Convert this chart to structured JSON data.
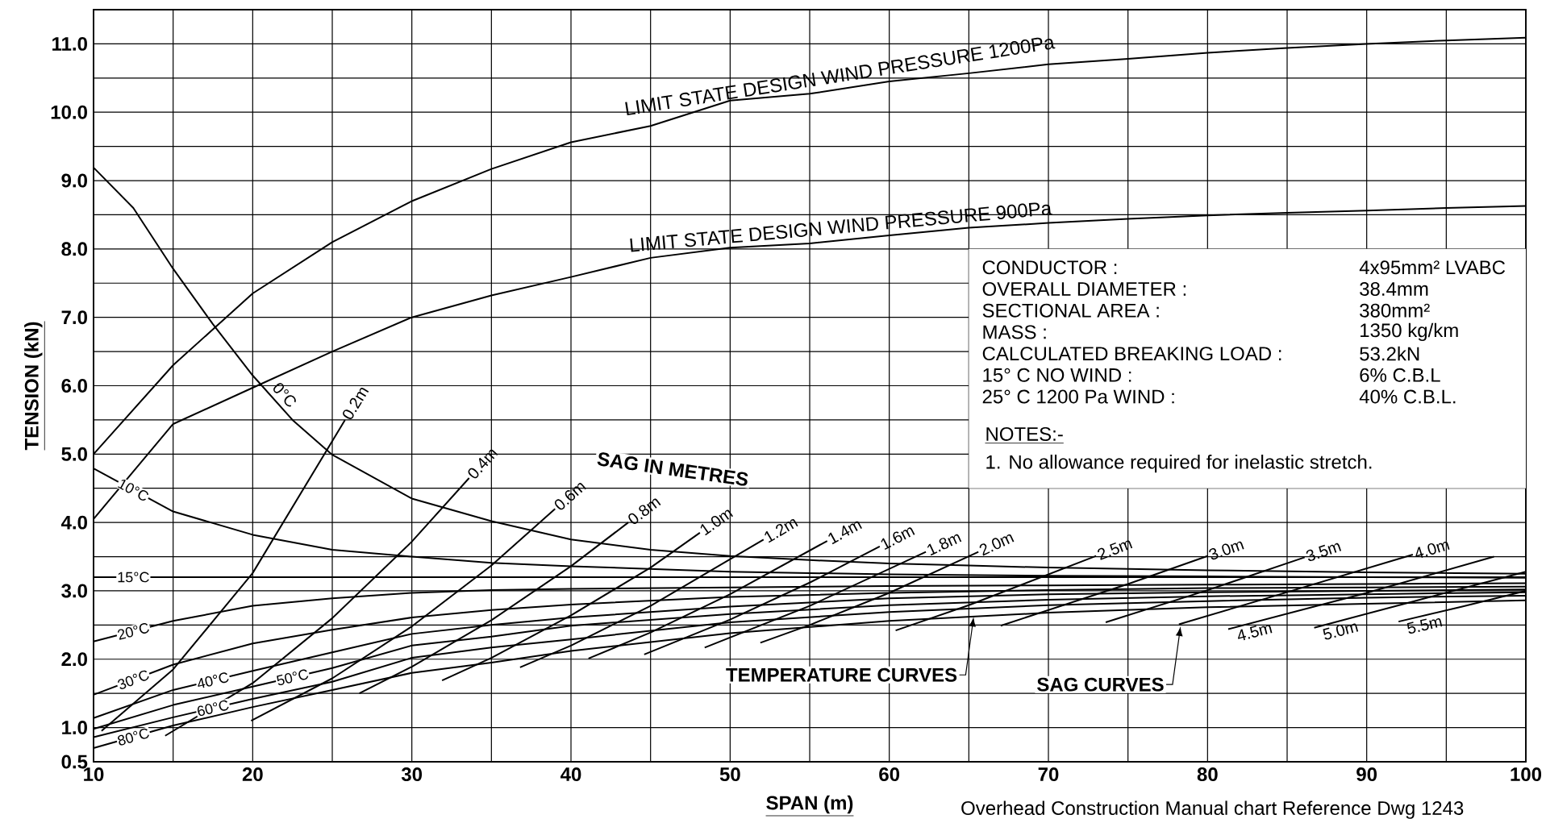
{
  "chart_data": {
    "type": "line",
    "xlabel": "SPAN (m)",
    "ylabel": "TENSION (kN)",
    "xlim": [
      10,
      100
    ],
    "ylim": [
      0.5,
      11.5
    ],
    "xticks": [
      10,
      {
        "value": 15,
        "label": null
      },
      20,
      {
        "value": 25,
        "label": null
      },
      30,
      {
        "value": 35,
        "label": null
      },
      40,
      {
        "value": 45,
        "label": null
      },
      50,
      {
        "value": 55,
        "label": null
      },
      60,
      {
        "value": 65,
        "label": null
      },
      70,
      {
        "value": 75,
        "label": null
      },
      80,
      {
        "value": 85,
        "label": null
      },
      90,
      {
        "value": 95,
        "label": null
      },
      100
    ],
    "yticks": [
      0.5,
      {
        "value": 1,
        "label": "1.0"
      },
      {
        "value": 1.5,
        "label": null
      },
      {
        "value": 2,
        "label": "2.0"
      },
      {
        "value": 2.5,
        "label": null
      },
      {
        "value": 3,
        "label": "3.0"
      },
      {
        "value": 3.5,
        "label": null
      },
      {
        "value": 4,
        "label": "4.0"
      },
      {
        "value": 4.5,
        "label": null
      },
      {
        "value": 5,
        "label": "5.0"
      },
      {
        "value": 5.5,
        "label": null
      },
      {
        "value": 6,
        "label": "6.0"
      },
      {
        "value": 6.5,
        "label": null
      },
      {
        "value": 7,
        "label": "7.0"
      },
      {
        "value": 7.5,
        "label": null
      },
      {
        "value": 8,
        "label": "8.0"
      },
      {
        "value": 8.5,
        "label": null
      },
      {
        "value": 9,
        "label": "9.0"
      },
      {
        "value": 9.5,
        "label": null
      },
      {
        "value": 10,
        "label": "10.0"
      },
      {
        "value": 10.5,
        "label": null
      },
      {
        "value": 11,
        "label": "11.0"
      }
    ],
    "grid": true,
    "annotations": [
      "SAG IN METRES",
      {
        "text": "TEMPERATURE CURVES",
        "x": 65.3,
        "y": 2.62
      },
      {
        "text": "SAG CURVES",
        "x": 78.3,
        "y": 2.48
      },
      "CONDUCTOR :",
      "4x95mm² LVABC",
      "OVERALL DIAMETER :",
      "38.4mm",
      "SECTIONAL AREA :",
      "380mm²",
      "MASS :",
      "1350 kg/km",
      "CALCULATED BREAKING LOAD :",
      "53.2kN",
      "15° C NO WIND :",
      "6% C.B.L",
      "25° C 1200 Pa WIND :",
      "40% C.B.L.",
      "NOTES:-",
      "1.  No allowance required for inelastic stretch.",
      "Overhead Construction Manual chart Reference Dwg 1243"
    ],
    "series": [
      {
        "name": "LIMIT STATE DESIGN  WIND PRESSURE 1200Pa",
        "color": "#000000",
        "x": [
          10,
          15,
          20,
          25,
          30,
          35,
          40,
          45,
          50,
          55,
          60,
          65,
          70,
          75,
          80,
          85,
          90,
          95,
          100
        ],
        "values": [
          5.0,
          6.3,
          7.35,
          8.1,
          8.7,
          9.17,
          9.56,
          9.8,
          10.17,
          10.27,
          10.45,
          10.57,
          10.7,
          10.78,
          10.87,
          10.94,
          11.0,
          11.05,
          11.09
        ]
      },
      {
        "name": "LIMIT STATE DESIGN  WIND PRESSURE 900Pa",
        "color": "#000000",
        "x": [
          10,
          15,
          20,
          25,
          30,
          35,
          40,
          45,
          50,
          55,
          60,
          65,
          70,
          75,
          80,
          85,
          90,
          95,
          100
        ],
        "values": [
          4.05,
          5.44,
          5.97,
          6.5,
          7.0,
          7.32,
          7.59,
          7.87,
          8.02,
          8.08,
          8.2,
          8.31,
          8.38,
          8.44,
          8.49,
          8.53,
          8.56,
          8.6,
          8.63
        ]
      },
      {
        "name": "0°C",
        "color": "#000000",
        "x": [
          10,
          12.5,
          15,
          17.5,
          20,
          22.5,
          25,
          30,
          35,
          40,
          45,
          50,
          55,
          60,
          65,
          70,
          80,
          90,
          100
        ],
        "values": [
          9.19,
          8.6,
          7.71,
          6.9,
          6.15,
          5.5,
          4.99,
          4.35,
          4.02,
          3.75,
          3.6,
          3.51,
          3.45,
          3.4,
          3.37,
          3.34,
          3.3,
          3.27,
          3.25
        ]
      },
      {
        "name": "10°C",
        "color": "#000000",
        "x": [
          10,
          15,
          20,
          25,
          30,
          35,
          40,
          50,
          60,
          70,
          80,
          90,
          100
        ],
        "values": [
          4.79,
          4.16,
          3.82,
          3.6,
          3.5,
          3.41,
          3.36,
          3.28,
          3.24,
          3.22,
          3.21,
          3.2,
          3.19
        ]
      },
      {
        "name": "15°C",
        "color": "#000000",
        "x": [
          10,
          100
        ],
        "values": [
          3.2,
          3.2
        ]
      },
      {
        "name": "20°C",
        "color": "#000000",
        "x": [
          10,
          15,
          20,
          25,
          30,
          35,
          40,
          50,
          60,
          70,
          80,
          90,
          100
        ],
        "values": [
          2.26,
          2.56,
          2.78,
          2.89,
          2.97,
          3.01,
          3.03,
          3.05,
          3.07,
          3.08,
          3.09,
          3.1,
          3.11
        ]
      },
      {
        "name": "30°C",
        "color": "#000000",
        "x": [
          10,
          15,
          20,
          25,
          30,
          35,
          40,
          50,
          60,
          70,
          80,
          90,
          100
        ],
        "values": [
          1.48,
          1.92,
          2.23,
          2.43,
          2.61,
          2.72,
          2.8,
          2.91,
          2.97,
          3.01,
          3.04,
          3.05,
          3.06
        ]
      },
      {
        "name": "40°C",
        "color": "#000000",
        "x": [
          10,
          15,
          20,
          25,
          30,
          35,
          40,
          50,
          60,
          70,
          80,
          90,
          100
        ],
        "values": [
          1.14,
          1.55,
          1.83,
          2.1,
          2.37,
          2.5,
          2.61,
          2.77,
          2.89,
          2.95,
          2.98,
          3.0,
          3.02
        ]
      },
      {
        "name": "50°C",
        "color": "#000000",
        "x": [
          10,
          15,
          20,
          25,
          30,
          35,
          40,
          50,
          60,
          70,
          80,
          90,
          100
        ],
        "values": [
          0.98,
          1.33,
          1.6,
          1.87,
          2.2,
          2.33,
          2.49,
          2.66,
          2.79,
          2.87,
          2.92,
          2.95,
          2.98
        ]
      },
      {
        "name": "60°C",
        "color": "#000000",
        "x": [
          10,
          15,
          20,
          25,
          30,
          35,
          40,
          50,
          60,
          70,
          80,
          90,
          100
        ],
        "values": [
          0.86,
          1.15,
          1.42,
          1.67,
          2.02,
          2.17,
          2.29,
          2.54,
          2.69,
          2.79,
          2.85,
          2.9,
          2.93
        ]
      },
      {
        "name": "80°C",
        "color": "#000000",
        "x": [
          10,
          15,
          20,
          25,
          30,
          35,
          40,
          50,
          60,
          70,
          80,
          90,
          100
        ],
        "values": [
          0.7,
          1.03,
          1.3,
          1.55,
          1.8,
          1.95,
          2.12,
          2.38,
          2.56,
          2.68,
          2.76,
          2.81,
          2.86
        ]
      },
      {
        "name": "0.2m",
        "color": "#000000",
        "x": [
          10.5,
          15,
          20,
          25.8
        ],
        "values": [
          0.95,
          1.85,
          3.26,
          5.5
        ]
      },
      {
        "name": "0.4m",
        "color": "#000000",
        "x": [
          14.5,
          20,
          25,
          30,
          33.6
        ],
        "values": [
          0.88,
          1.65,
          2.6,
          3.72,
          4.65
        ]
      },
      {
        "name": "0.6m",
        "color": "#000000",
        "x": [
          19.9,
          25,
          30,
          35,
          39
        ],
        "values": [
          1.1,
          1.72,
          2.48,
          3.37,
          4.2
        ]
      },
      {
        "name": "0.8m",
        "color": "#000000",
        "x": [
          26.7,
          30,
          35,
          40,
          43.6
        ],
        "values": [
          1.5,
          1.89,
          2.57,
          3.36,
          4.0
        ]
      },
      {
        "name": "1.0m",
        "color": "#000000",
        "x": [
          31.9,
          35,
          40,
          45,
          48.1
        ],
        "values": [
          1.69,
          2.02,
          2.64,
          3.34,
          3.85
        ]
      },
      {
        "name": "1.2m",
        "color": "#000000",
        "x": [
          36.8,
          40,
          45,
          52.1
        ],
        "values": [
          1.88,
          2.2,
          2.78,
          3.75
        ]
      },
      {
        "name": "1.4m",
        "color": "#000000",
        "x": [
          41.1,
          45,
          50,
          56.1
        ],
        "values": [
          2.01,
          2.39,
          2.95,
          3.73
        ]
      },
      {
        "name": "1.6m",
        "color": "#000000",
        "x": [
          44.6,
          50,
          55,
          59.4
        ],
        "values": [
          2.07,
          2.58,
          3.12,
          3.65
        ]
      },
      {
        "name": "1.8m",
        "color": "#000000",
        "x": [
          48.4,
          55,
          62.3
        ],
        "values": [
          2.17,
          2.78,
          3.57
        ]
      },
      {
        "name": "2.0m",
        "color": "#000000",
        "x": [
          51.9,
          55,
          60,
          65.6
        ],
        "values": [
          2.24,
          2.5,
          2.97,
          3.57
        ]
      },
      {
        "name": "2.5m",
        "color": "#000000",
        "x": [
          60.4,
          65,
          73
        ],
        "values": [
          2.42,
          2.79,
          3.51
        ]
      },
      {
        "name": "3.0m",
        "color": "#000000",
        "x": [
          67,
          75,
          80
        ],
        "values": [
          2.49,
          3.1,
          3.51
        ]
      },
      {
        "name": "3.5m",
        "color": "#000000",
        "x": [
          73.6,
          80,
          86.1
        ],
        "values": [
          2.54,
          3.01,
          3.49
        ]
      },
      {
        "name": "4.0m",
        "color": "#000000",
        "x": [
          78.2,
          85,
          92.9
        ],
        "values": [
          2.51,
          2.98,
          3.53
        ]
      },
      {
        "name": "4.5m",
        "color": "#000000",
        "x": [
          81.3,
          90,
          98
        ],
        "values": [
          2.44,
          2.97,
          3.5
        ]
      },
      {
        "name": "5.0m",
        "color": "#000000",
        "x": [
          86.7,
          93,
          100
        ],
        "values": [
          2.46,
          2.85,
          3.28
        ]
      },
      {
        "name": "5.5m",
        "color": "#000000",
        "x": [
          92,
          96,
          100
        ],
        "values": [
          2.55,
          2.77,
          3.0
        ]
      }
    ]
  }
}
